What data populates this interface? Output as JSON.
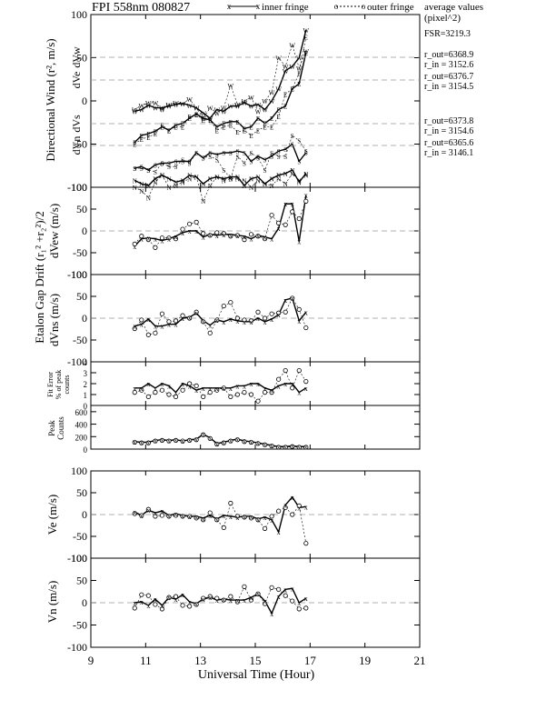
{
  "header": {
    "title": "FPI 558nm 080827",
    "legend_inner": "inner fringe",
    "legend_outer": "outer fringe",
    "avg_title": "average values",
    "avg_unit": "(pixel^2)"
  },
  "stats": {
    "fsr": "FSR=3219.3",
    "w_out": "r_out=6368.9",
    "w_in": "r_in = 3152.6",
    "e_out": "r_out=6376.7",
    "e_in": "r_in = 3154.5",
    "s_out": "r_out=6373.8",
    "s_in": "r_in = 3154.6",
    "n_out": "r_out=6365.6",
    "n_in": "r_in = 3146.1"
  },
  "labels": {
    "dvw": "dVw",
    "dve": "dVe",
    "dvs": "dVs",
    "dvn": "dVn",
    "ylabel_directional": "Directional Wind (r², m/s)",
    "ylabel_etalon": "Etalon Gap Drift (r₁² +r₂²)/2",
    "ylabel_dvew": "dVew (m/s)",
    "ylabel_dvns": "dVns (m/s)",
    "ylabel_fit1": "Fit Error",
    "ylabel_fit2": "% of peak",
    "ylabel_fit3": "counts",
    "ylabel_peak1": "Peak",
    "ylabel_peak2": "Counts",
    "ylabel_ve": "Ve (m/s)",
    "ylabel_vn": "Vn (m/s)",
    "xlabel": "Universal Time (Hour)"
  },
  "chart_data": {
    "type": "line",
    "x_ticks": [
      9,
      11,
      13,
      15,
      17,
      19,
      21
    ],
    "xlim": [
      9,
      21
    ],
    "times": [
      10.6,
      10.85,
      11.1,
      11.35,
      11.6,
      11.85,
      12.1,
      12.35,
      12.6,
      12.85,
      13.1,
      13.35,
      13.6,
      13.85,
      14.1,
      14.35,
      14.6,
      14.85,
      15.1,
      15.35,
      15.6,
      15.85,
      16.1,
      16.35,
      16.6,
      16.85
    ],
    "panels": [
      {
        "name": "directional",
        "ylim": [
          -100,
          100
        ],
        "y_ticks": [
          -100,
          -50,
          0,
          50,
          100
        ],
        "series": [
          {
            "marker": "W",
            "inner": [
              -12,
              -10,
              -5,
              -8,
              -8,
              -6,
              -4,
              -3,
              -5,
              -8,
              -14,
              -20,
              -10,
              -12,
              -6,
              -6,
              -2,
              -6,
              -4,
              -10,
              0,
              14,
              35,
              40,
              50,
              82
            ],
            "outer": [
              -10,
              -5,
              -2,
              -2,
              -10,
              -4,
              -2,
              -3,
              2,
              -8,
              -20,
              -8,
              -14,
              -8,
              18,
              -4,
              0,
              4,
              -12,
              0,
              10,
              50,
              40,
              65,
              38,
              58
            ]
          },
          {
            "marker": "E",
            "inner": [
              -48,
              -40,
              -38,
              -35,
              -30,
              -34,
              -28,
              -26,
              -20,
              -15,
              -20,
              -22,
              -30,
              -26,
              -24,
              -24,
              -32,
              -30,
              -20,
              -26,
              -20,
              -10,
              -6,
              14,
              20,
              56
            ],
            "outer": [
              -50,
              -44,
              -42,
              -38,
              -28,
              -34,
              -30,
              -30,
              -18,
              -16,
              -22,
              -22,
              -34,
              -30,
              -28,
              -36,
              -34,
              -40,
              -34,
              -30,
              -30,
              -18,
              8,
              14,
              32,
              74
            ]
          },
          {
            "marker": "S",
            "inner": [
              -78,
              -76,
              -80,
              -74,
              -72,
              -72,
              -70,
              -70,
              -70,
              -60,
              -66,
              -60,
              -62,
              -60,
              -60,
              -58,
              -60,
              -70,
              -64,
              -68,
              -64,
              -58,
              -56,
              -50,
              -70,
              -60
            ],
            "outer": [
              -78,
              -78,
              -80,
              -82,
              -72,
              -76,
              -76,
              -68,
              -72,
              -60,
              -66,
              -64,
              -68,
              -80,
              -90,
              -64,
              -72,
              -60,
              -66,
              -80,
              -60,
              -64,
              -64,
              -40,
              -46,
              -58
            ]
          },
          {
            "marker": "N",
            "inner": [
              -92,
              -96,
              -98,
              -90,
              -86,
              -90,
              -94,
              -92,
              -86,
              -88,
              -96,
              -90,
              -88,
              -90,
              -88,
              -88,
              -98,
              -90,
              -88,
              -96,
              -90,
              -86,
              -84,
              -80,
              -94,
              -84
            ],
            "outer": [
              -100,
              -104,
              -112,
              -94,
              -86,
              -100,
              -98,
              -94,
              -90,
              -88,
              -116,
              -98,
              -88,
              -92,
              -90,
              -90,
              -92,
              -100,
              -92,
              -96,
              -98,
              -90,
              -96,
              -84,
              -92,
              -86
            ]
          }
        ]
      },
      {
        "name": "dVew",
        "ylim": [
          -100,
          100
        ],
        "y_ticks": [
          -100,
          -50,
          0,
          50,
          100
        ],
        "inner": [
          -35,
          -18,
          -16,
          -18,
          -22,
          -18,
          -12,
          -4,
          0,
          0,
          -14,
          -8,
          -10,
          -8,
          -8,
          -10,
          -12,
          -18,
          -10,
          -14,
          -18,
          6,
          62,
          62,
          -24,
          82
        ],
        "outer": [
          -30,
          -12,
          -20,
          -38,
          -16,
          -16,
          -18,
          4,
          16,
          20,
          -6,
          -10,
          -4,
          -6,
          -12,
          -10,
          -20,
          -8,
          -12,
          -18,
          36,
          18,
          14,
          44,
          28,
          68
        ]
      },
      {
        "name": "dVns",
        "ylim": [
          -100,
          100
        ],
        "y_ticks": [
          -100,
          -50,
          0,
          50,
          100
        ],
        "inner": [
          -18,
          -14,
          -2,
          -18,
          -18,
          -14,
          -14,
          0,
          2,
          12,
          -6,
          -16,
          -4,
          -8,
          -2,
          -6,
          -8,
          -8,
          0,
          -8,
          -2,
          8,
          42,
          46,
          -6,
          14
        ],
        "outer": [
          -24,
          -4,
          -38,
          -34,
          10,
          -8,
          -6,
          6,
          0,
          14,
          -8,
          -34,
          -4,
          28,
          36,
          0,
          -4,
          -6,
          14,
          0,
          10,
          12,
          14,
          46,
          20,
          -22
        ]
      },
      {
        "name": "fit_error",
        "ylim": [
          0,
          4
        ],
        "y_ticks": [
          0,
          1,
          2,
          3,
          4
        ],
        "inner": [
          1.6,
          1.6,
          2.0,
          1.6,
          2.0,
          1.8,
          1.2,
          2.0,
          1.8,
          1.4,
          1.6,
          1.6,
          1.6,
          1.6,
          1.6,
          1.8,
          1.8,
          2.0,
          2.0,
          1.6,
          1.4,
          1.8,
          2.0,
          2.0,
          1.2,
          1.6
        ],
        "outer": [
          1.2,
          1.4,
          0.8,
          1.2,
          1.4,
          1.0,
          0.8,
          1.4,
          2.0,
          1.8,
          0.8,
          1.2,
          1.4,
          1.6,
          0.8,
          1.0,
          1.2,
          1.0,
          0.4,
          1.2,
          1.2,
          2.4,
          3.2,
          1.6,
          3.2,
          2.2
        ]
      },
      {
        "name": "peak_counts",
        "ylim": [
          0,
          700
        ],
        "y_ticks": [
          0,
          200,
          400,
          600
        ],
        "inner": [
          120,
          110,
          110,
          140,
          150,
          140,
          150,
          130,
          150,
          160,
          240,
          180,
          90,
          110,
          140,
          160,
          130,
          120,
          100,
          80,
          60,
          40,
          40,
          50,
          40,
          40
        ],
        "outer": [
          110,
          100,
          100,
          130,
          140,
          130,
          140,
          130,
          140,
          150,
          230,
          170,
          80,
          100,
          130,
          150,
          120,
          110,
          90,
          70,
          50,
          30,
          30,
          40,
          30,
          30
        ]
      },
      {
        "name": "Ve",
        "ylim": [
          -100,
          100
        ],
        "y_ticks": [
          -100,
          -50,
          0,
          50,
          100
        ],
        "inner": [
          6,
          -2,
          10,
          4,
          8,
          -2,
          2,
          -2,
          -4,
          -4,
          -8,
          -2,
          -10,
          -2,
          -4,
          -6,
          -4,
          -4,
          -10,
          -6,
          -12,
          -40,
          22,
          40,
          16,
          18
        ],
        "outer": [
          2,
          -2,
          12,
          -4,
          -2,
          -4,
          -2,
          -4,
          -4,
          -8,
          -12,
          4,
          -12,
          -30,
          26,
          -4,
          -6,
          -8,
          -12,
          -32,
          -4,
          8,
          16,
          0,
          20,
          -66
        ]
      },
      {
        "name": "Vn",
        "ylim": [
          -100,
          100
        ],
        "y_ticks": [
          -100,
          -50,
          0,
          50,
          100
        ],
        "inner": [
          0,
          2,
          -6,
          8,
          -6,
          12,
          8,
          18,
          2,
          -2,
          8,
          12,
          6,
          8,
          6,
          6,
          6,
          12,
          20,
          4,
          -24,
          14,
          30,
          32,
          0,
          10
        ],
        "outer": [
          -12,
          18,
          16,
          -4,
          -14,
          12,
          14,
          -6,
          -8,
          -4,
          10,
          14,
          10,
          6,
          14,
          2,
          36,
          6,
          20,
          -2,
          34,
          30,
          16,
          4,
          -14,
          -12
        ]
      }
    ]
  }
}
